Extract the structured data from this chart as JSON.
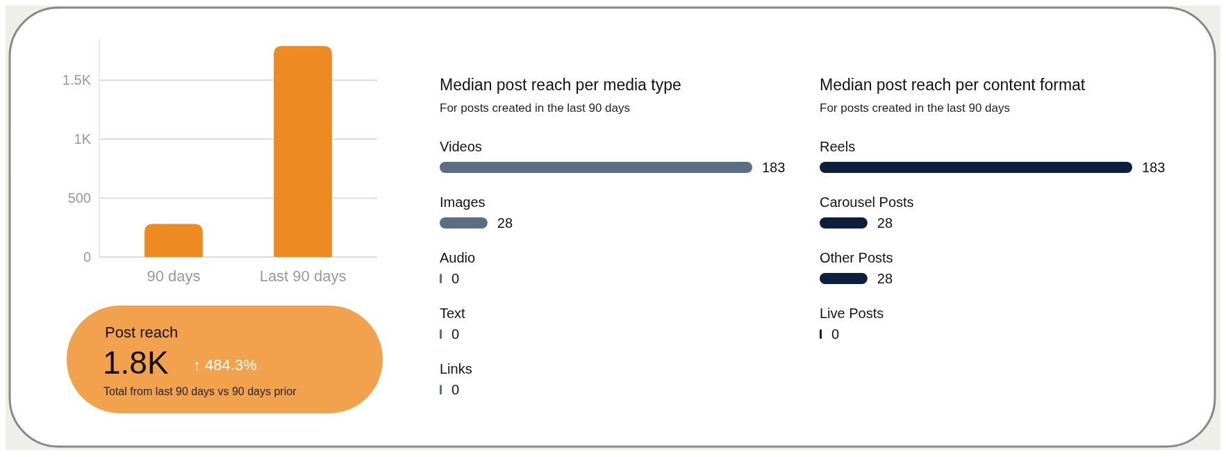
{
  "chart_data": [
    {
      "type": "bar",
      "categories": [
        "90 days",
        "Last 90 days"
      ],
      "values": [
        280,
        1790
      ],
      "color": "#ee8a22",
      "ylim": [
        0,
        1850
      ],
      "yticks": [
        0,
        500,
        {
          "value": 1000,
          "label": "1K"
        },
        {
          "value": 1500,
          "label": "1.5K"
        }
      ],
      "grid": "y"
    },
    {
      "type": "other",
      "title": "Post reach",
      "annotations": [
        "1.8K",
        "↑ 484.3%",
        "Total from last 90 days vs 90 days prior"
      ]
    },
    {
      "type": "bar",
      "orientation": "horizontal",
      "title": "Median post reach per media type",
      "subtitle": "For posts created in the last 90 days",
      "categories": [
        "Videos",
        "Images",
        "Audio",
        "Text",
        "Links"
      ],
      "values": [
        183,
        28,
        0,
        0,
        0
      ],
      "color": "#5b6e86",
      "data_labels": true
    },
    {
      "type": "bar",
      "orientation": "horizontal",
      "title": "Median post reach per content format",
      "subtitle": "For posts created in the last 90 days",
      "categories": [
        "Reels",
        "Carousel Posts",
        "Other Posts",
        "Live Posts"
      ],
      "values": [
        183,
        28,
        28,
        0
      ],
      "color": "#0e1f3d",
      "data_labels": true
    }
  ]
}
